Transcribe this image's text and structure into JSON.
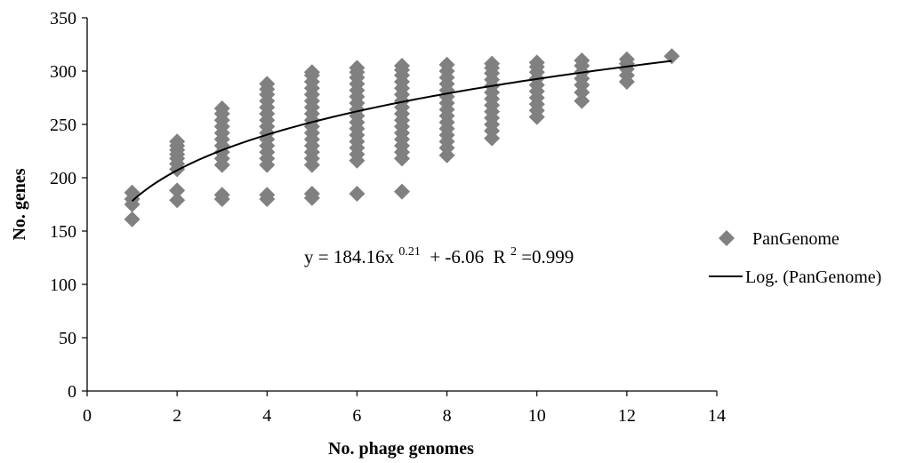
{
  "chart_data": {
    "type": "scatter",
    "xlabel": "No. phage genomes",
    "ylabel": "No. genes",
    "xlim": [
      0,
      14
    ],
    "ylim": [
      0,
      350
    ],
    "xticks": [
      "0",
      "2",
      "4",
      "6",
      "8",
      "10",
      "12",
      "14"
    ],
    "yticks": [
      "0",
      "50",
      "100",
      "150",
      "200",
      "250",
      "300",
      "350"
    ],
    "grid": false,
    "legend_position": "right",
    "colors": {
      "marker": "#808080",
      "line": "#000000",
      "axis": "#000000"
    },
    "series": [
      {
        "name": "PanGenome",
        "kind": "scatter",
        "marker": "diamond",
        "points": [
          {
            "x": 1,
            "y": 161
          },
          {
            "x": 1,
            "y": 175
          },
          {
            "x": 1,
            "y": 180
          },
          {
            "x": 1,
            "y": 186
          },
          {
            "x": 2,
            "y": 179
          },
          {
            "x": 2,
            "y": 188
          },
          {
            "x": 2,
            "y": 208
          },
          {
            "x": 2,
            "y": 213
          },
          {
            "x": 2,
            "y": 218
          },
          {
            "x": 2,
            "y": 222
          },
          {
            "x": 2,
            "y": 226
          },
          {
            "x": 2,
            "y": 230
          },
          {
            "x": 2,
            "y": 234
          },
          {
            "x": 3,
            "y": 180
          },
          {
            "x": 3,
            "y": 184
          },
          {
            "x": 3,
            "y": 212
          },
          {
            "x": 3,
            "y": 218
          },
          {
            "x": 3,
            "y": 224
          },
          {
            "x": 3,
            "y": 230
          },
          {
            "x": 3,
            "y": 236
          },
          {
            "x": 3,
            "y": 242
          },
          {
            "x": 3,
            "y": 248
          },
          {
            "x": 3,
            "y": 254
          },
          {
            "x": 3,
            "y": 260
          },
          {
            "x": 3,
            "y": 265
          },
          {
            "x": 4,
            "y": 180
          },
          {
            "x": 4,
            "y": 184
          },
          {
            "x": 4,
            "y": 212
          },
          {
            "x": 4,
            "y": 218
          },
          {
            "x": 4,
            "y": 224
          },
          {
            "x": 4,
            "y": 230
          },
          {
            "x": 4,
            "y": 236
          },
          {
            "x": 4,
            "y": 242
          },
          {
            "x": 4,
            "y": 248
          },
          {
            "x": 4,
            "y": 254
          },
          {
            "x": 4,
            "y": 260
          },
          {
            "x": 4,
            "y": 266
          },
          {
            "x": 4,
            "y": 272
          },
          {
            "x": 4,
            "y": 278
          },
          {
            "x": 4,
            "y": 283
          },
          {
            "x": 4,
            "y": 288
          },
          {
            "x": 5,
            "y": 181
          },
          {
            "x": 5,
            "y": 185
          },
          {
            "x": 5,
            "y": 212
          },
          {
            "x": 5,
            "y": 218
          },
          {
            "x": 5,
            "y": 224
          },
          {
            "x": 5,
            "y": 230
          },
          {
            "x": 5,
            "y": 236
          },
          {
            "x": 5,
            "y": 242
          },
          {
            "x": 5,
            "y": 248
          },
          {
            "x": 5,
            "y": 254
          },
          {
            "x": 5,
            "y": 260
          },
          {
            "x": 5,
            "y": 266
          },
          {
            "x": 5,
            "y": 272
          },
          {
            "x": 5,
            "y": 278
          },
          {
            "x": 5,
            "y": 284
          },
          {
            "x": 5,
            "y": 290
          },
          {
            "x": 5,
            "y": 296
          },
          {
            "x": 5,
            "y": 299
          },
          {
            "x": 6,
            "y": 185
          },
          {
            "x": 6,
            "y": 216
          },
          {
            "x": 6,
            "y": 222
          },
          {
            "x": 6,
            "y": 228
          },
          {
            "x": 6,
            "y": 234
          },
          {
            "x": 6,
            "y": 240
          },
          {
            "x": 6,
            "y": 246
          },
          {
            "x": 6,
            "y": 252
          },
          {
            "x": 6,
            "y": 258
          },
          {
            "x": 6,
            "y": 264
          },
          {
            "x": 6,
            "y": 270
          },
          {
            "x": 6,
            "y": 276
          },
          {
            "x": 6,
            "y": 282
          },
          {
            "x": 6,
            "y": 288
          },
          {
            "x": 6,
            "y": 294
          },
          {
            "x": 6,
            "y": 299
          },
          {
            "x": 6,
            "y": 303
          },
          {
            "x": 7,
            "y": 187
          },
          {
            "x": 7,
            "y": 218
          },
          {
            "x": 7,
            "y": 224
          },
          {
            "x": 7,
            "y": 230
          },
          {
            "x": 7,
            "y": 236
          },
          {
            "x": 7,
            "y": 242
          },
          {
            "x": 7,
            "y": 248
          },
          {
            "x": 7,
            "y": 254
          },
          {
            "x": 7,
            "y": 260
          },
          {
            "x": 7,
            "y": 266
          },
          {
            "x": 7,
            "y": 272
          },
          {
            "x": 7,
            "y": 278
          },
          {
            "x": 7,
            "y": 284
          },
          {
            "x": 7,
            "y": 290
          },
          {
            "x": 7,
            "y": 296
          },
          {
            "x": 7,
            "y": 301
          },
          {
            "x": 7,
            "y": 305
          },
          {
            "x": 8,
            "y": 221
          },
          {
            "x": 8,
            "y": 228
          },
          {
            "x": 8,
            "y": 234
          },
          {
            "x": 8,
            "y": 240
          },
          {
            "x": 8,
            "y": 246
          },
          {
            "x": 8,
            "y": 252
          },
          {
            "x": 8,
            "y": 258
          },
          {
            "x": 8,
            "y": 264
          },
          {
            "x": 8,
            "y": 270
          },
          {
            "x": 8,
            "y": 276
          },
          {
            "x": 8,
            "y": 282
          },
          {
            "x": 8,
            "y": 288
          },
          {
            "x": 8,
            "y": 294
          },
          {
            "x": 8,
            "y": 300
          },
          {
            "x": 8,
            "y": 306
          },
          {
            "x": 9,
            "y": 237
          },
          {
            "x": 9,
            "y": 244
          },
          {
            "x": 9,
            "y": 250
          },
          {
            "x": 9,
            "y": 256
          },
          {
            "x": 9,
            "y": 262
          },
          {
            "x": 9,
            "y": 268
          },
          {
            "x": 9,
            "y": 274
          },
          {
            "x": 9,
            "y": 280
          },
          {
            "x": 9,
            "y": 286
          },
          {
            "x": 9,
            "y": 292
          },
          {
            "x": 9,
            "y": 298
          },
          {
            "x": 9,
            "y": 303
          },
          {
            "x": 9,
            "y": 307
          },
          {
            "x": 10,
            "y": 257
          },
          {
            "x": 10,
            "y": 263
          },
          {
            "x": 10,
            "y": 269
          },
          {
            "x": 10,
            "y": 275
          },
          {
            "x": 10,
            "y": 281
          },
          {
            "x": 10,
            "y": 287
          },
          {
            "x": 10,
            "y": 293
          },
          {
            "x": 10,
            "y": 299
          },
          {
            "x": 10,
            "y": 304
          },
          {
            "x": 10,
            "y": 308
          },
          {
            "x": 11,
            "y": 272
          },
          {
            "x": 11,
            "y": 280
          },
          {
            "x": 11,
            "y": 287
          },
          {
            "x": 11,
            "y": 293
          },
          {
            "x": 11,
            "y": 299
          },
          {
            "x": 11,
            "y": 305
          },
          {
            "x": 11,
            "y": 310
          },
          {
            "x": 12,
            "y": 290
          },
          {
            "x": 12,
            "y": 296
          },
          {
            "x": 12,
            "y": 302
          },
          {
            "x": 12,
            "y": 307
          },
          {
            "x": 12,
            "y": 311
          },
          {
            "x": 13,
            "y": 314
          }
        ]
      },
      {
        "name": "Log. (PanGenome)",
        "kind": "line",
        "fit": {
          "a": 184.16,
          "b": 0.21,
          "c": -6.06,
          "x_from": 1,
          "x_to": 13
        }
      }
    ],
    "annotations": [
      {
        "id": "equation",
        "prefix": "y = 184.16x",
        "exponent": "0.21",
        "mid": " + -6.06  R",
        "r_exp": "2",
        "suffix": "=0.999"
      }
    ]
  }
}
